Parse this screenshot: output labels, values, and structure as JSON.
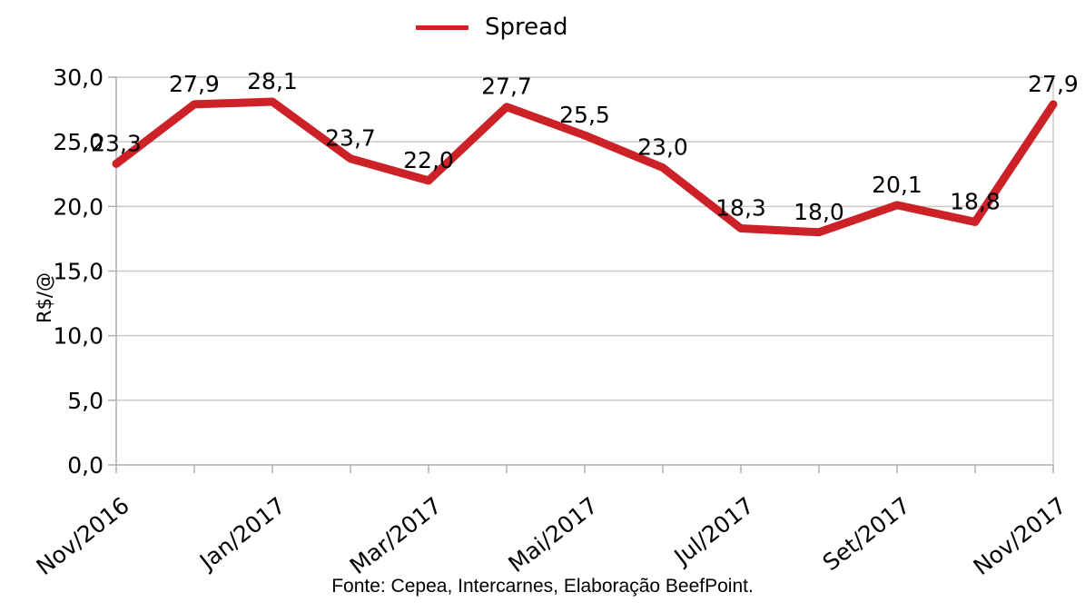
{
  "legend": {
    "label": "Spread"
  },
  "colors": {
    "series": "#CC2127",
    "grid": "#C9C9C9",
    "axis": "#AEAEAE",
    "text": "#000000"
  },
  "chart_data": {
    "type": "line",
    "series": [
      {
        "name": "Spread",
        "values": [
          23.3,
          27.9,
          28.1,
          23.7,
          22.0,
          27.7,
          25.5,
          23.0,
          18.3,
          18.0,
          20.1,
          18.8,
          27.9
        ],
        "point_labels": [
          "23,3",
          "27,9",
          "28,1",
          "23,7",
          "22,0",
          "27,7",
          "25,5",
          "23,0",
          "18,3",
          "18,0",
          "20,1",
          "18,8",
          "27,9"
        ],
        "color": "#CC2127"
      }
    ],
    "n_points": 13,
    "x_tick_labels": [
      "Nov/2016",
      "Jan/2017",
      "Mar/2017",
      "Mai/2017",
      "Jul/2017",
      "Set/2017",
      "Nov/2017"
    ],
    "x_labeled_point_indices": [
      0,
      2,
      4,
      6,
      8,
      10,
      12
    ],
    "y_tick_labels": [
      "30,0",
      "25,0",
      "20,0",
      "15,0",
      "10,0",
      "5,0",
      "0,0"
    ],
    "ylim": [
      0,
      30
    ],
    "y_tick_step": 5,
    "ylabel": "R$/@",
    "grid": "horizontal",
    "legend_position": "top-center",
    "source_note": "Fonte: Cepea, Intercarnes, Elaboração BeefPoint."
  }
}
